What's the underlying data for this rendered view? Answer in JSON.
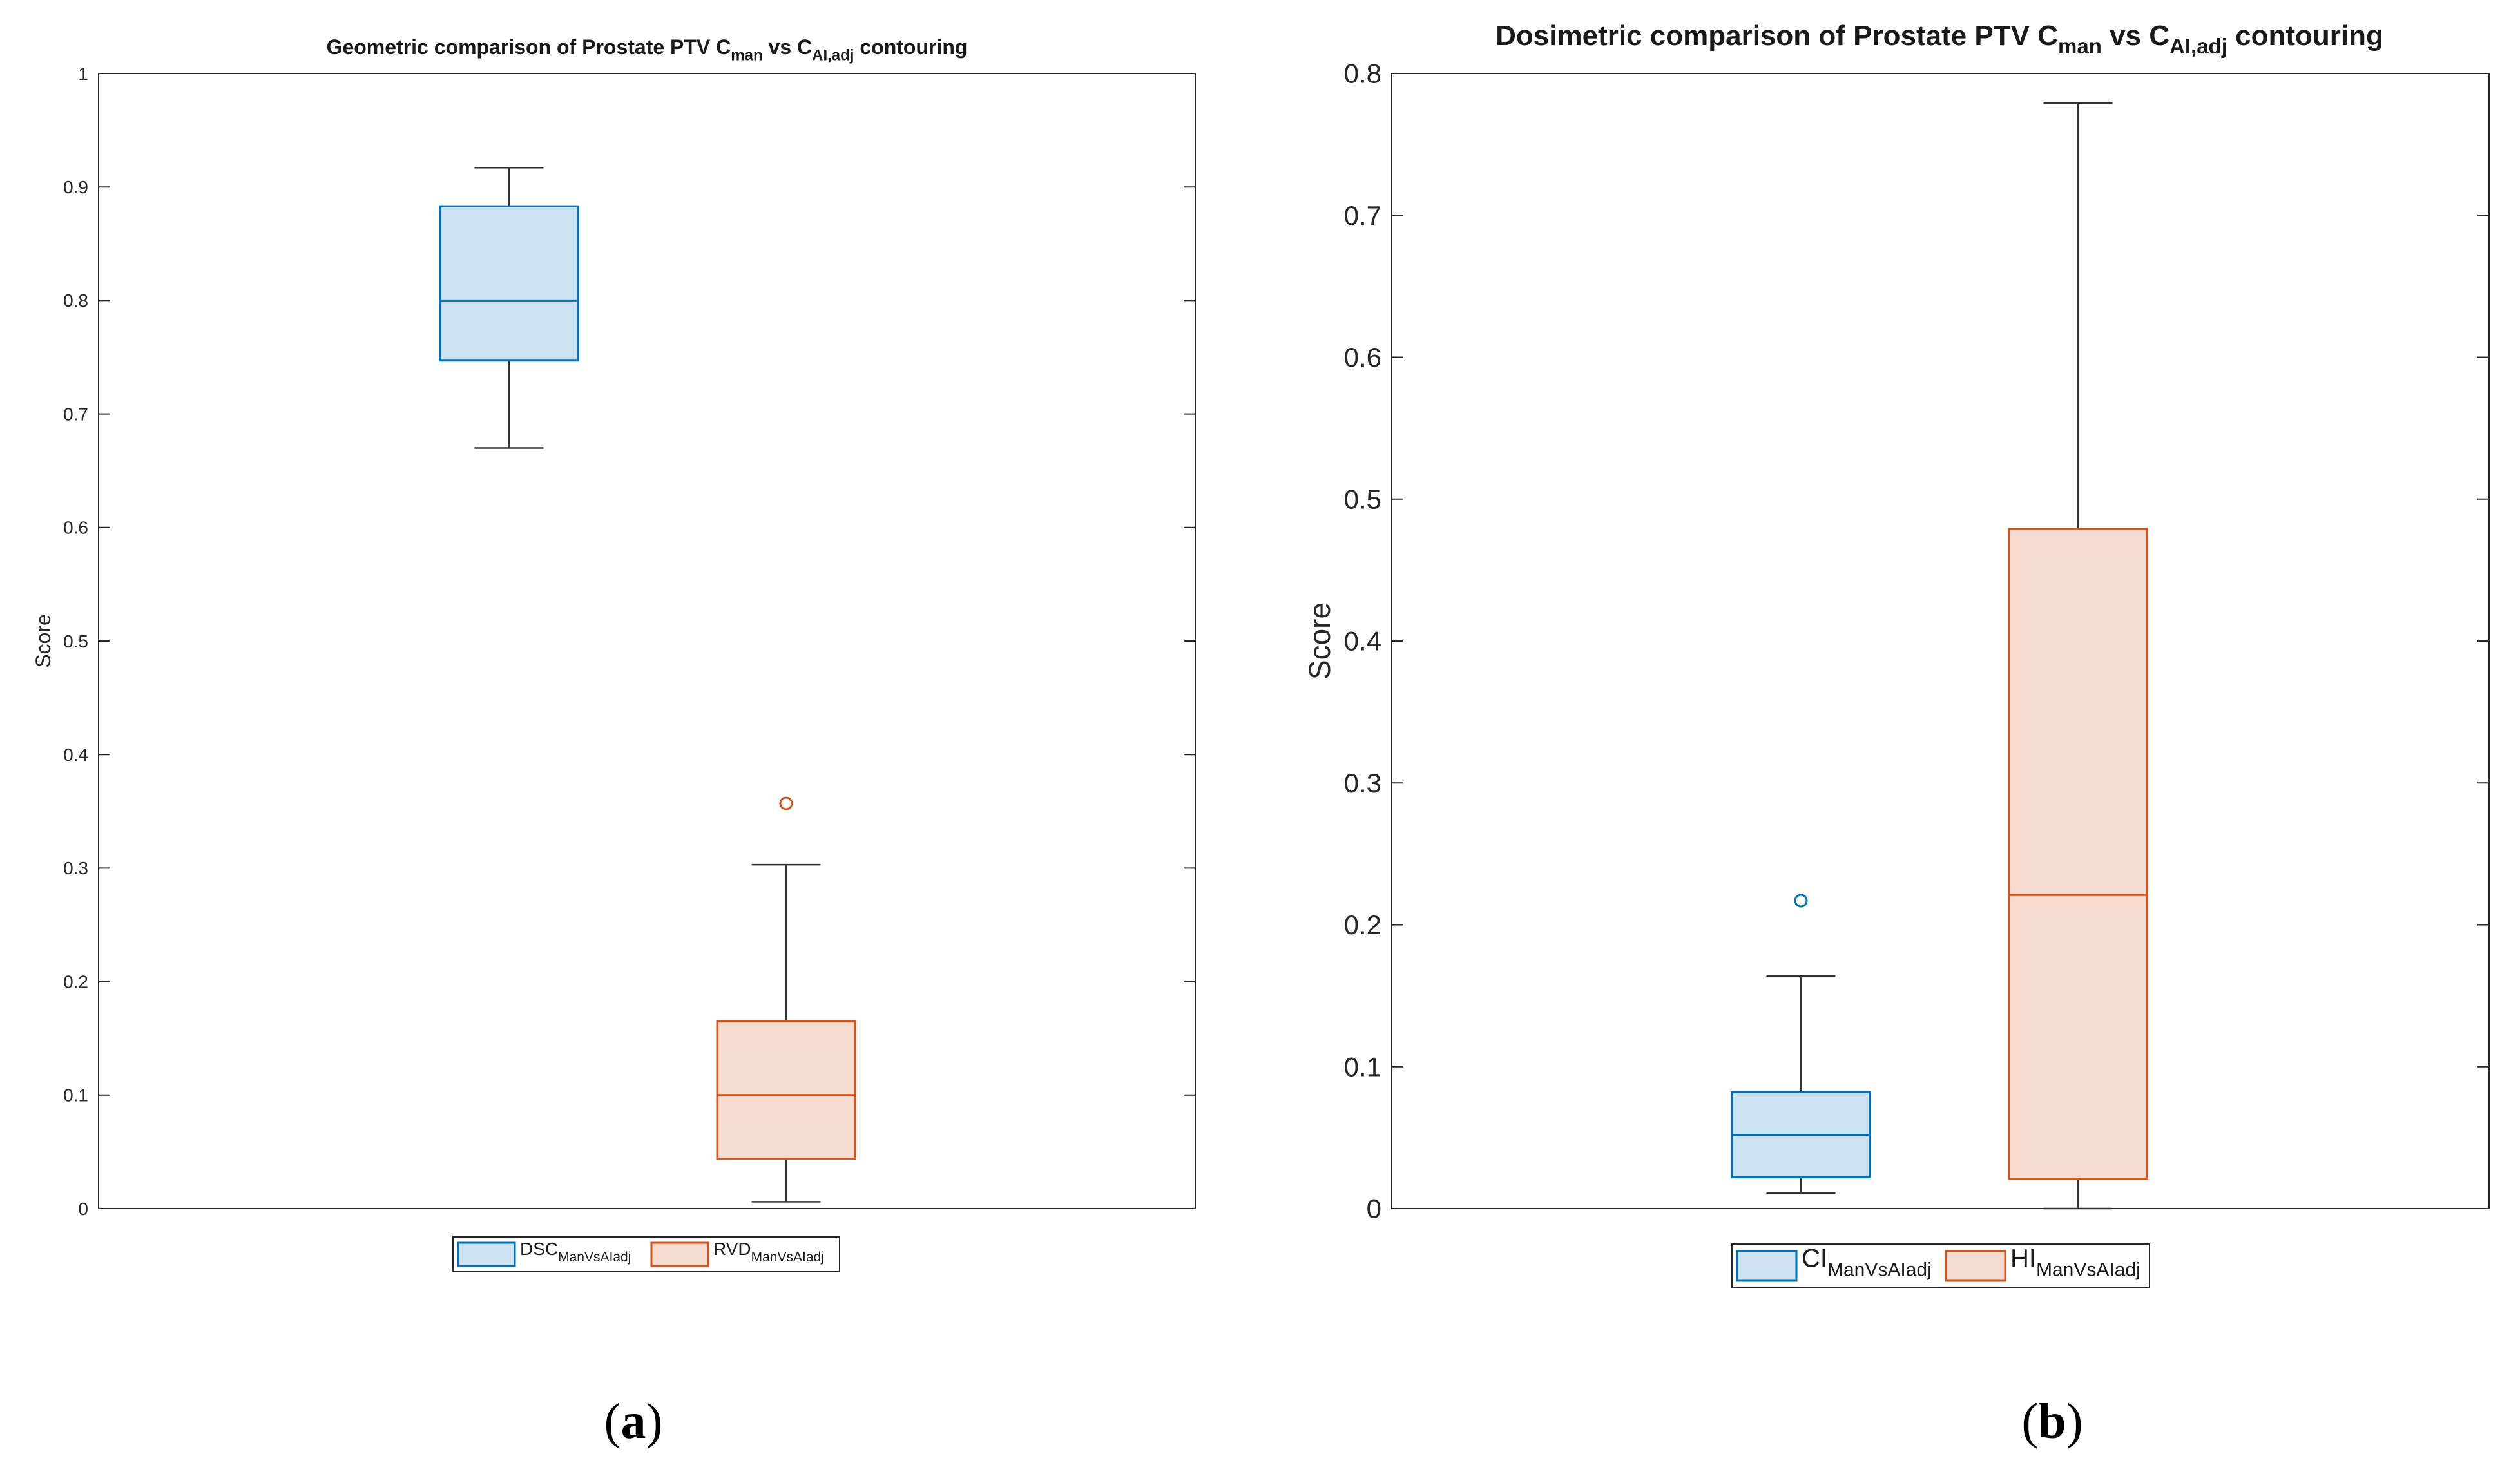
{
  "chart_data": [
    {
      "id": "a",
      "type": "boxplot",
      "title": {
        "prefix": "Geometric comparison of Prostate PTV C",
        "sub1": "man",
        "mid": " vs C",
        "sub2": "AI,adj",
        "suffix": " contouring"
      },
      "ylabel": "Score",
      "ylim": [
        0,
        1
      ],
      "yticks": [
        "0",
        "0.1",
        "0.2",
        "0.3",
        "0.4",
        "0.5",
        "0.6",
        "0.7",
        "0.8",
        "0.9",
        "1"
      ],
      "ytick_values": [
        0,
        0.1,
        0.2,
        0.3,
        0.4,
        0.5,
        0.6,
        0.7,
        0.8,
        0.9,
        1
      ],
      "series": [
        {
          "name": "DSC",
          "sub": "ManVsAIadj",
          "color": "#0072BD",
          "fill": "#cde3f2",
          "whisker_low": 0.67,
          "q1": 0.747,
          "median": 0.8,
          "q3": 0.883,
          "whisker_high": 0.917,
          "outliers": []
        },
        {
          "name": "RVD",
          "sub": "ManVsAIadj",
          "color": "#D95319",
          "fill": "#f6dbd0",
          "whisker_low": 0.006,
          "q1": 0.044,
          "median": 0.1,
          "q3": 0.165,
          "whisker_high": 0.303,
          "outliers": [
            0.357
          ]
        }
      ],
      "caption": {
        "open": "(",
        "letter": "a",
        "close": ")"
      }
    },
    {
      "id": "b",
      "type": "boxplot",
      "title": {
        "prefix": "Dosimetric comparison of Prostate PTV C",
        "sub1": "man",
        "mid": " vs C",
        "sub2": "AI,adj",
        "suffix": " contouring"
      },
      "ylabel": "Score",
      "ylim": [
        0,
        0.8
      ],
      "yticks": [
        "0",
        "0.1",
        "0.2",
        "0.3",
        "0.4",
        "0.5",
        "0.6",
        "0.7",
        "0.8"
      ],
      "ytick_values": [
        0,
        0.1,
        0.2,
        0.3,
        0.4,
        0.5,
        0.6,
        0.7,
        0.8
      ],
      "series": [
        {
          "name": "CI",
          "sub": "ManVsAIadj",
          "color": "#0072BD",
          "fill": "#cde3f2",
          "whisker_low": 0.011,
          "q1": 0.022,
          "median": 0.052,
          "q3": 0.082,
          "whisker_high": 0.164,
          "outliers": [
            0.217
          ]
        },
        {
          "name": "HI",
          "sub": "ManVsAIadj",
          "color": "#D95319",
          "fill": "#f6dbd0",
          "whisker_low": 0.0,
          "q1": 0.021,
          "median": 0.221,
          "q3": 0.479,
          "whisker_high": 0.779,
          "outliers": []
        }
      ],
      "caption": {
        "open": "(",
        "letter": "b",
        "close": ")"
      }
    }
  ]
}
